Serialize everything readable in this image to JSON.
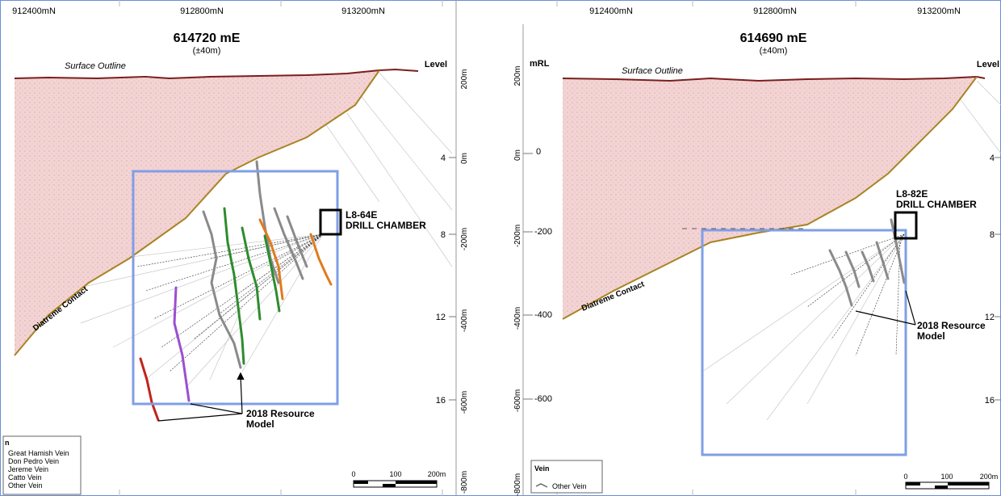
{
  "left": {
    "northings": [
      "912400mN",
      "912800mN",
      "913200mN"
    ],
    "section_title": "614720 mE",
    "section_subtitle": "(±40m)",
    "surface_outline": "Surface Outline",
    "level_label": "Level",
    "level_ticks": [
      "4",
      "8",
      "12",
      "16"
    ],
    "rl_ticks": [
      "200m",
      "0m",
      "-200m",
      "-400m",
      "-600m",
      "-800m"
    ],
    "diatreme_label": "Diatreme Contact",
    "drill_chamber_id": "L8-64E",
    "drill_chamber_label": "DRILL CHAMBER",
    "resource_model_line1": "2018 Resource",
    "resource_model_line2": "Model",
    "legend_title": "n",
    "legend_items": [
      "Great Hamish Vein",
      "Don Pedro Vein",
      "Jereme Vein",
      "Catto Vein",
      "Other Vein"
    ],
    "scale_labels": [
      "0",
      "100",
      "200m"
    ]
  },
  "right": {
    "northings": [
      "912400mN",
      "912800mN",
      "913200mN"
    ],
    "section_title": "614690 mE",
    "section_subtitle": "(±40m)",
    "mrl_label": "mRL",
    "surface_outline": "Surface Outline",
    "level_label": "Level",
    "level_ticks": [
      "4",
      "8",
      "12",
      "16"
    ],
    "rl_ticks": [
      "200m",
      "0m",
      "-200m",
      "-400m",
      "-600m",
      "-800m"
    ],
    "rl_values": [
      "0",
      "-200",
      "-400",
      "-600"
    ],
    "diatreme_label": "Diatreme Contact",
    "drill_chamber_id": "L8-82E",
    "drill_chamber_label": "DRILL CHAMBER",
    "resource_model_line1": "2018 Resource",
    "resource_model_line2": "Model",
    "legend_title": "Vein",
    "legend_items": [
      "Other Vein"
    ],
    "scale_labels": [
      "0",
      "100",
      "200m"
    ]
  },
  "colors": {
    "surface": "#7a1e1e",
    "contact": "#a88423",
    "fill": "#f3d3d3",
    "box": "#7f9fe6",
    "green": "#2e8b2e",
    "orange": "#e07b1e",
    "purple": "#9b4fd0",
    "red": "#c0241c",
    "grey": "#8a8a8a"
  }
}
